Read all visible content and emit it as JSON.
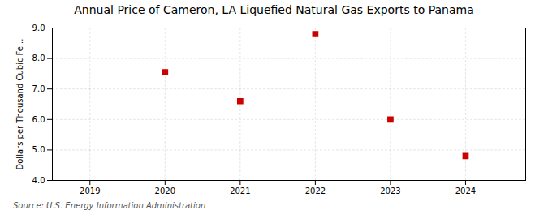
{
  "chart_data": {
    "type": "scatter",
    "title": "Annual Price of Cameron, LA Liquefied Natural Gas Exports to Panama",
    "ylabel": "Dollars per Thousand Cubic Fe...",
    "source": "Source: U.S. Energy Information Administration",
    "x": [
      2020,
      2021,
      2022,
      2023,
      2024
    ],
    "values": [
      7.55,
      6.6,
      8.8,
      6.0,
      4.8
    ],
    "color": "#cc0000",
    "marker": "square",
    "xlim": [
      2018.5,
      2024.8
    ],
    "ylim": [
      4,
      9
    ],
    "xticks": [
      2019,
      2020,
      2021,
      2022,
      2023,
      2024
    ],
    "yticks": [
      4,
      5,
      6,
      7,
      8,
      9
    ],
    "grid": true
  }
}
